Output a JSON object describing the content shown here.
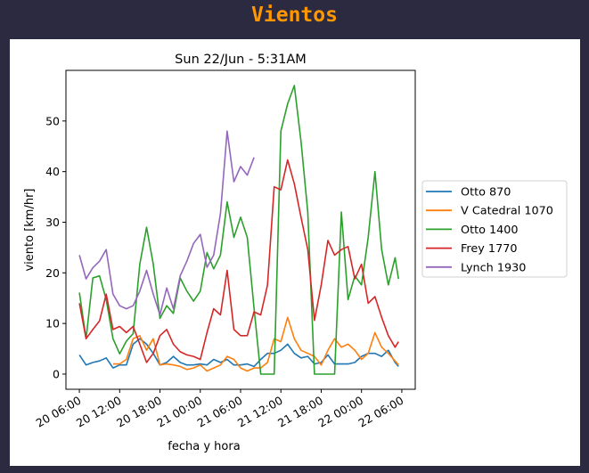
{
  "page": {
    "header": "Vientos"
  },
  "chart_data": {
    "type": "line",
    "title": "Sun 22/Jun - 5:31AM",
    "xlabel": "fecha y hora",
    "ylabel": "viento [km/hr]",
    "ylim": [
      -3,
      60
    ],
    "xlim": [
      "20 04:00",
      "22 08:00"
    ],
    "yticks": [
      0,
      10,
      20,
      30,
      40,
      50
    ],
    "xticks": [
      "20 06:00",
      "20 12:00",
      "20 18:00",
      "21 00:00",
      "21 06:00",
      "21 12:00",
      "21 18:00",
      "22 00:00",
      "22 06:00"
    ],
    "grid": false,
    "legend_position": "right outside",
    "x": [
      "20 06:00",
      "20 07:00",
      "20 08:00",
      "20 09:00",
      "20 10:00",
      "20 11:00",
      "20 12:00",
      "20 13:00",
      "20 14:00",
      "20 15:00",
      "20 16:00",
      "20 17:00",
      "20 18:00",
      "20 19:00",
      "20 20:00",
      "20 21:00",
      "20 22:00",
      "20 23:00",
      "21 00:00",
      "21 01:00",
      "21 02:00",
      "21 03:00",
      "21 04:00",
      "21 05:00",
      "21 06:00",
      "21 07:00",
      "21 08:00",
      "21 09:00",
      "21 10:00",
      "21 11:00",
      "21 12:00",
      "21 13:00",
      "21 14:00",
      "21 15:00",
      "21 16:00",
      "21 17:00",
      "21 18:00",
      "21 19:00",
      "21 20:00",
      "21 21:00",
      "21 22:00",
      "21 23:00",
      "22 00:00",
      "22 01:00",
      "22 02:00",
      "22 03:00",
      "22 04:00",
      "22 05:00",
      "22 05:30"
    ],
    "series": [
      {
        "name": "Otto 870",
        "color": "#1f77b4",
        "values": [
          3.8,
          1.8,
          2.3,
          2.6,
          3.2,
          1.2,
          1.8,
          1.8,
          5.9,
          7,
          5.9,
          4.1,
          1.8,
          2.3,
          3.5,
          2.3,
          1.8,
          1.8,
          2,
          1.8,
          2.9,
          2.3,
          2.9,
          1.8,
          1.8,
          2,
          1.5,
          2.9,
          4.1,
          4.1,
          4.7,
          5.9,
          4.1,
          3.2,
          3.5,
          2,
          2.3,
          3.8,
          2,
          2,
          2,
          2.3,
          3.5,
          4.1,
          4.1,
          3.5,
          4.7,
          2.3,
          1.5
        ]
      },
      {
        "name": "V Catedral 1070",
        "color": "#ff7f0e",
        "values": [
          null,
          null,
          null,
          null,
          null,
          2,
          2,
          2.9,
          7,
          7.6,
          4.7,
          7,
          1.8,
          2,
          1.8,
          1.5,
          0.9,
          1.2,
          1.8,
          0.6,
          1.2,
          1.8,
          3.5,
          2.9,
          1.2,
          0.6,
          1.2,
          1.2,
          2.3,
          7,
          6.4,
          11.2,
          7,
          4.7,
          4.1,
          3.5,
          1.8,
          4.7,
          7,
          5.3,
          5.9,
          4.7,
          2.9,
          4.1,
          8.2,
          5.3,
          4.1,
          2.6,
          1.8
        ]
      },
      {
        "name": "Otto 1400",
        "color": "#2ca02c",
        "values": [
          16.1,
          7,
          19,
          19.4,
          14.7,
          7,
          4,
          6.5,
          8,
          21.7,
          29,
          21.7,
          11,
          13.5,
          12,
          19,
          16.4,
          14.4,
          16.4,
          24,
          20.8,
          23.5,
          34,
          27,
          31,
          27,
          13,
          0,
          0,
          0,
          48,
          53.4,
          57,
          46,
          32,
          0,
          0,
          0,
          0,
          32,
          14.7,
          19.4,
          17.6,
          27,
          40,
          24.6,
          17.6,
          23,
          18.8
        ]
      },
      {
        "name": "Frey 1770",
        "color": "#d62728",
        "values": [
          14,
          7,
          8.8,
          10.5,
          15.8,
          8.8,
          9.4,
          8.2,
          9.4,
          5.9,
          2.3,
          4.1,
          7.6,
          8.8,
          5.9,
          4.4,
          3.8,
          3.5,
          2.9,
          8.2,
          12.9,
          11.7,
          20.5,
          8.8,
          7.6,
          7.6,
          12.3,
          11.7,
          17.6,
          37,
          36.4,
          42.3,
          37.6,
          31,
          24.6,
          10.6,
          17.6,
          26.4,
          23.5,
          24.6,
          25.2,
          18.8,
          21.7,
          14,
          15.3,
          11.2,
          7.6,
          5.3,
          6.4
        ]
      },
      {
        "name": "Lynch 1930",
        "color": "#9467bd",
        "values": [
          23.5,
          18.8,
          21,
          22.3,
          24.6,
          15.8,
          13.5,
          12.9,
          13.5,
          16.4,
          20.5,
          15.8,
          11.7,
          17,
          12.9,
          19.4,
          22.3,
          25.8,
          27.6,
          21.1,
          23.5,
          31.7,
          48,
          38,
          41,
          39.3,
          42.8,
          null,
          null,
          null,
          null,
          null,
          null,
          null,
          null,
          null,
          null,
          null,
          null,
          null,
          null,
          null,
          null,
          null,
          null,
          null,
          null,
          null,
          null
        ]
      }
    ]
  }
}
